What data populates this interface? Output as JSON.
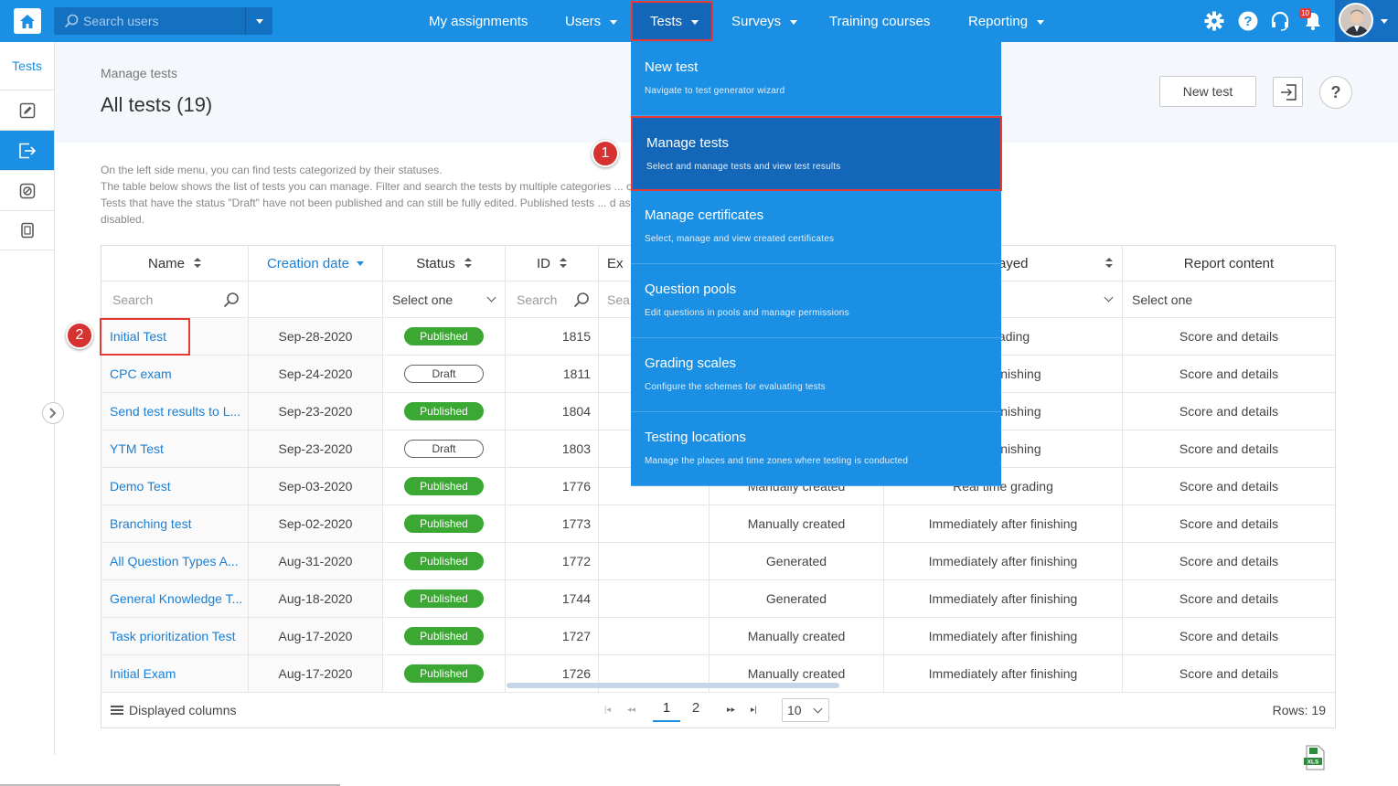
{
  "topbar": {
    "search_placeholder": "Search users",
    "nav": [
      "My assignments",
      "Users",
      "Tests",
      "Surveys",
      "Training courses",
      "Reporting"
    ],
    "notification_count": "10"
  },
  "sidebar": {
    "tab_label": "Tests"
  },
  "header": {
    "breadcrumb": "Manage tests",
    "title": "All tests (19)",
    "new_test_label": "New test",
    "help_label": "?"
  },
  "description": [
    "On the left side menu, you can find tests categorized by their statuses.",
    "The table below shows the list of tests you can manage. Filter and search the tests by multiple categories ... corner.",
    "Tests that have the status \"Draft\" have not been published and can still be fully edited. Published tests ... d assign new candidates. Suspended tests are permanently",
    "disabled."
  ],
  "table": {
    "columns": [
      "Name",
      "Creation date",
      "Status",
      "ID",
      "Ex",
      "",
      "isplayed",
      "Report content"
    ],
    "filters": {
      "name_placeholder": "Search",
      "status_select": "Select one",
      "id_placeholder": "Search",
      "ex_placeholder": "Sea",
      "report_select": "Select one"
    },
    "rows": [
      {
        "name": "Initial Test",
        "date": "Sep-28-2020",
        "status": "Published",
        "id": "1815",
        "creation": "",
        "results": "e grading",
        "report": "Score and details"
      },
      {
        "name": "CPC exam",
        "date": "Sep-24-2020",
        "status": "Draft",
        "id": "1811",
        "creation": "",
        "results": "after finishing",
        "report": "Score and details"
      },
      {
        "name": "Send test results to L...",
        "date": "Sep-23-2020",
        "status": "Published",
        "id": "1804",
        "creation": "",
        "results": "after finishing",
        "report": "Score and details"
      },
      {
        "name": "YTM Test",
        "date": "Sep-23-2020",
        "status": "Draft",
        "id": "1803",
        "creation": "",
        "results": "after finishing",
        "report": "Score and details"
      },
      {
        "name": "Demo Test",
        "date": "Sep-03-2020",
        "status": "Published",
        "id": "1776",
        "creation": "Manually created",
        "results": "Real time grading",
        "report": "Score and details"
      },
      {
        "name": "Branching test",
        "date": "Sep-02-2020",
        "status": "Published",
        "id": "1773",
        "creation": "Manually created",
        "results": "Immediately after finishing",
        "report": "Score and details"
      },
      {
        "name": "All Question Types A...",
        "date": "Aug-31-2020",
        "status": "Published",
        "id": "1772",
        "creation": "Generated",
        "results": "Immediately after finishing",
        "report": "Score and details"
      },
      {
        "name": "General Knowledge T...",
        "date": "Aug-18-2020",
        "status": "Published",
        "id": "1744",
        "creation": "Generated",
        "results": "Immediately after finishing",
        "report": "Score and details"
      },
      {
        "name": "Task prioritization Test",
        "date": "Aug-17-2020",
        "status": "Published",
        "id": "1727",
        "creation": "Manually created",
        "results": "Immediately after finishing",
        "report": "Score and details"
      },
      {
        "name": "Initial Exam",
        "date": "Aug-17-2020",
        "status": "Published",
        "id": "1726",
        "creation": "Manually created",
        "results": "Immediately after finishing",
        "report": "Score and details"
      }
    ],
    "footer": {
      "displayed_columns": "Displayed columns",
      "pages": [
        "1",
        "2"
      ],
      "current_page": "1",
      "page_size": "10",
      "rows_label": "Rows: 19"
    }
  },
  "menu": {
    "items": [
      {
        "title": "New test",
        "subtitle": "Navigate to test generator wizard"
      },
      {
        "title": "Manage tests",
        "subtitle": "Select and manage tests and view test results"
      },
      {
        "title": "Manage certificates",
        "subtitle": "Select, manage and view created certificates"
      },
      {
        "title": "Question pools",
        "subtitle": "Edit questions in pools and manage permissions"
      },
      {
        "title": "Grading scales",
        "subtitle": "Configure the schemes for evaluating tests"
      },
      {
        "title": "Testing locations",
        "subtitle": "Manage the places and time zones where testing is conducted"
      }
    ]
  },
  "markers": [
    "1",
    "2"
  ],
  "colors": {
    "brand": "#1a8fe3",
    "menu_active": "#1467b8",
    "highlight": "#e53935",
    "published": "#3aa832"
  }
}
